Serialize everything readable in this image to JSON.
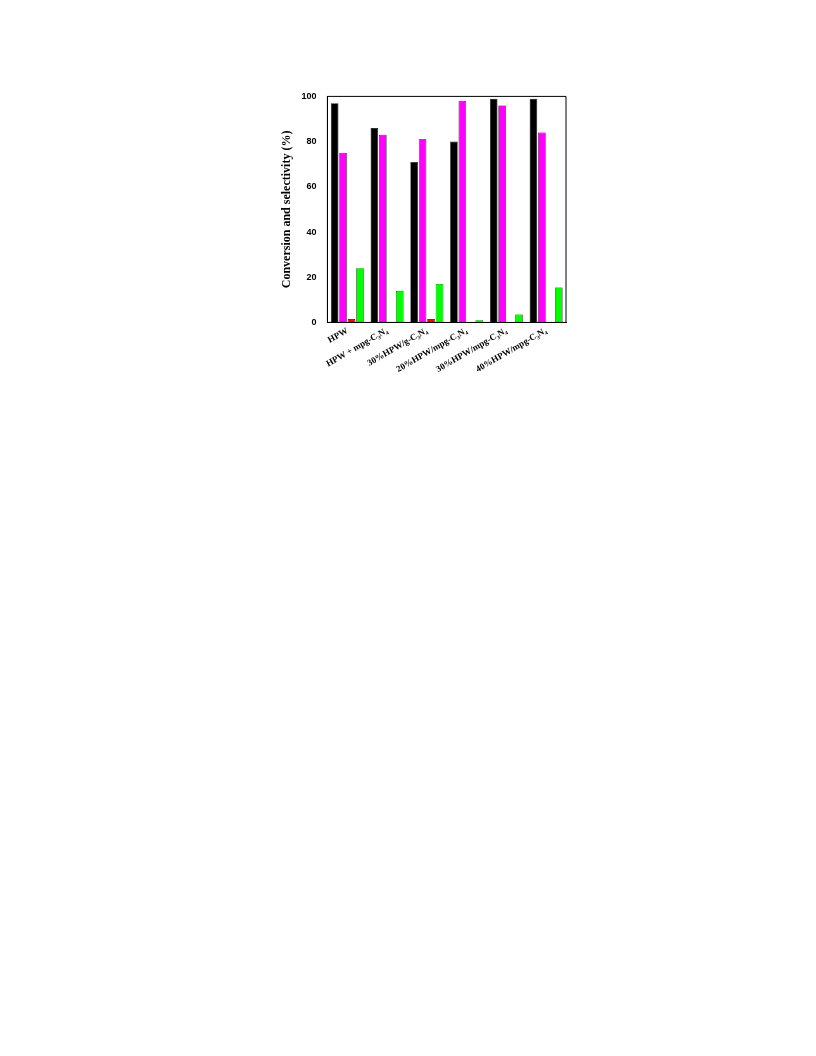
{
  "chart_data": {
    "type": "bar",
    "ylabel": "Conversion and selectivity (%)",
    "categories": [
      "HPW",
      "HPW + mpg-C₃N₄",
      "30%HPW/g-C₃N₄",
      "20%HPW/mpg-C₃N₄",
      "30%HPW/mpg-C₃N₄",
      "40%HPW/mpg-C₃N₄"
    ],
    "series": [
      {
        "color": "#000000",
        "values": [
          97,
          86,
          71,
          80,
          99,
          99
        ]
      },
      {
        "color": "#ff00ff",
        "values": [
          75,
          83,
          81,
          98,
          96,
          84
        ]
      },
      {
        "color": "#ff0000",
        "values": [
          1.5,
          0,
          1.5,
          0,
          0,
          0
        ]
      },
      {
        "color": "#00ff00",
        "values": [
          24,
          14,
          17,
          1,
          3.5,
          15.5
        ]
      }
    ],
    "ylim": [
      0,
      100
    ],
    "yticks": [
      0,
      20,
      40,
      60,
      80,
      100
    ],
    "grid": false,
    "legend": false
  }
}
